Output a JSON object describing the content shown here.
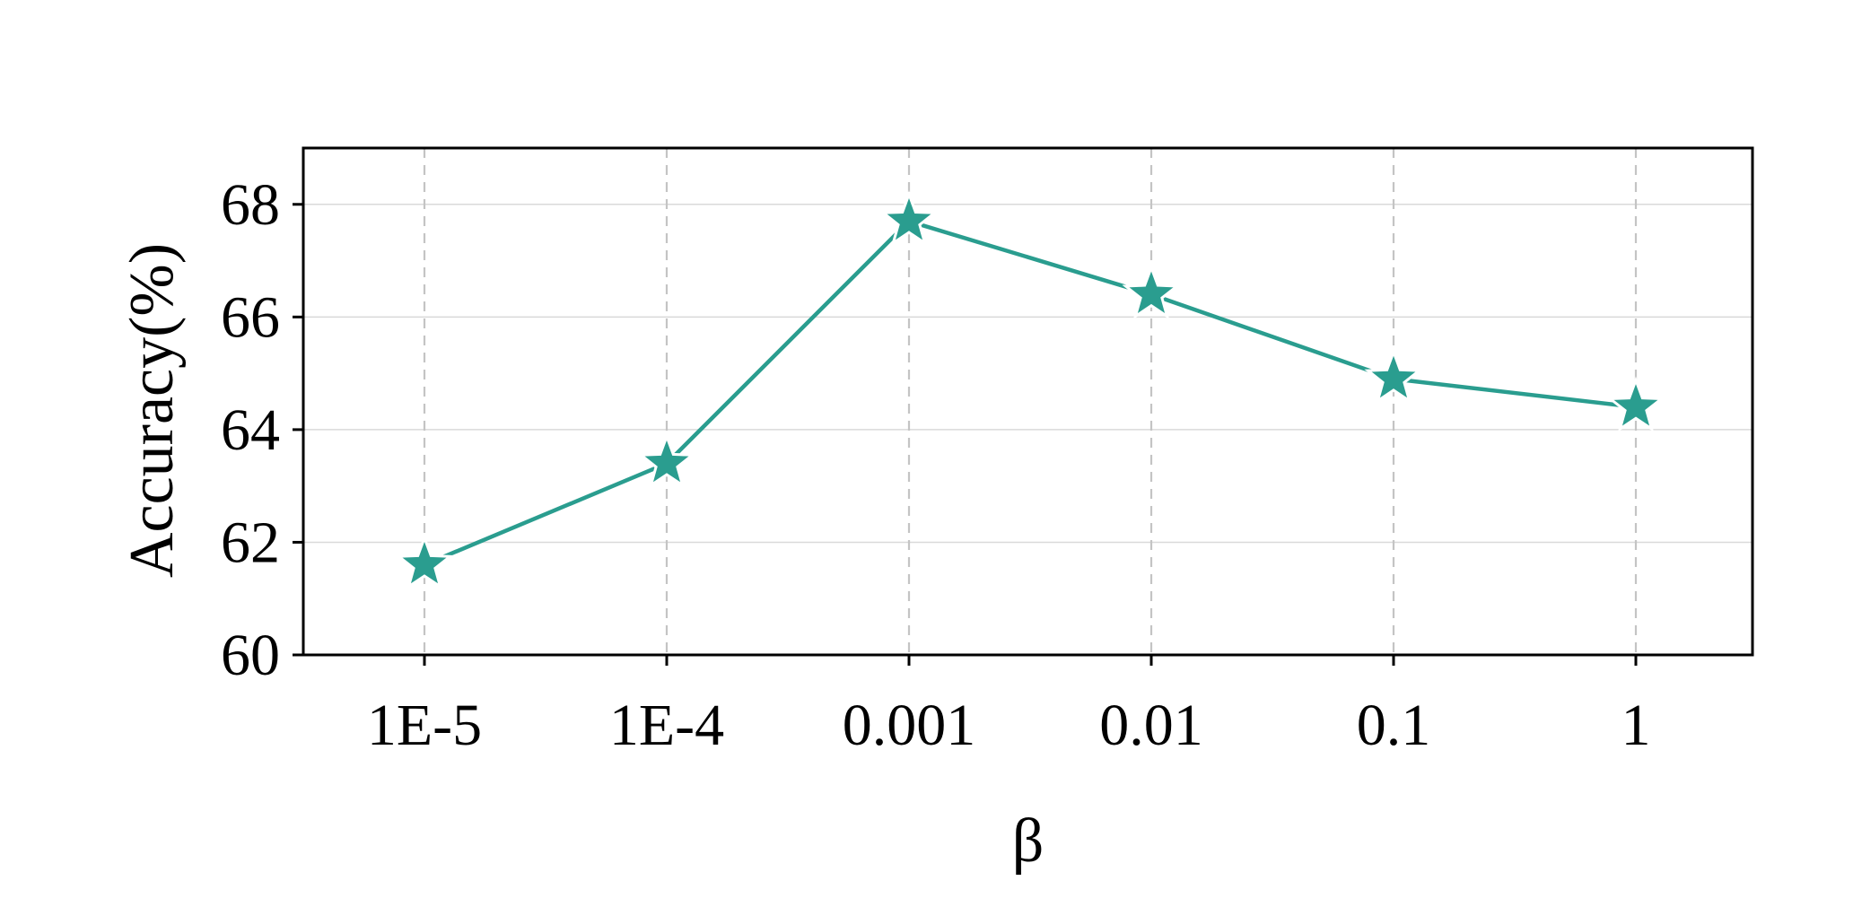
{
  "chart_data": {
    "type": "line",
    "categories": [
      "1E-5",
      "1E-4",
      "0.001",
      "0.01",
      "0.1",
      "1"
    ],
    "series": [
      {
        "values": [
          61.6,
          63.4,
          67.7,
          66.4,
          64.9,
          64.4
        ]
      }
    ],
    "xlabel": "β",
    "ylabel": "Accuracy(%)",
    "ylim": [
      60,
      69
    ],
    "yticks": [
      60,
      62,
      64,
      66,
      68
    ],
    "marker": "star",
    "grid": {
      "x": "dashed",
      "y": "solid"
    },
    "line_color": "#2a9d8f",
    "marker_color": "#2a9d8f"
  }
}
